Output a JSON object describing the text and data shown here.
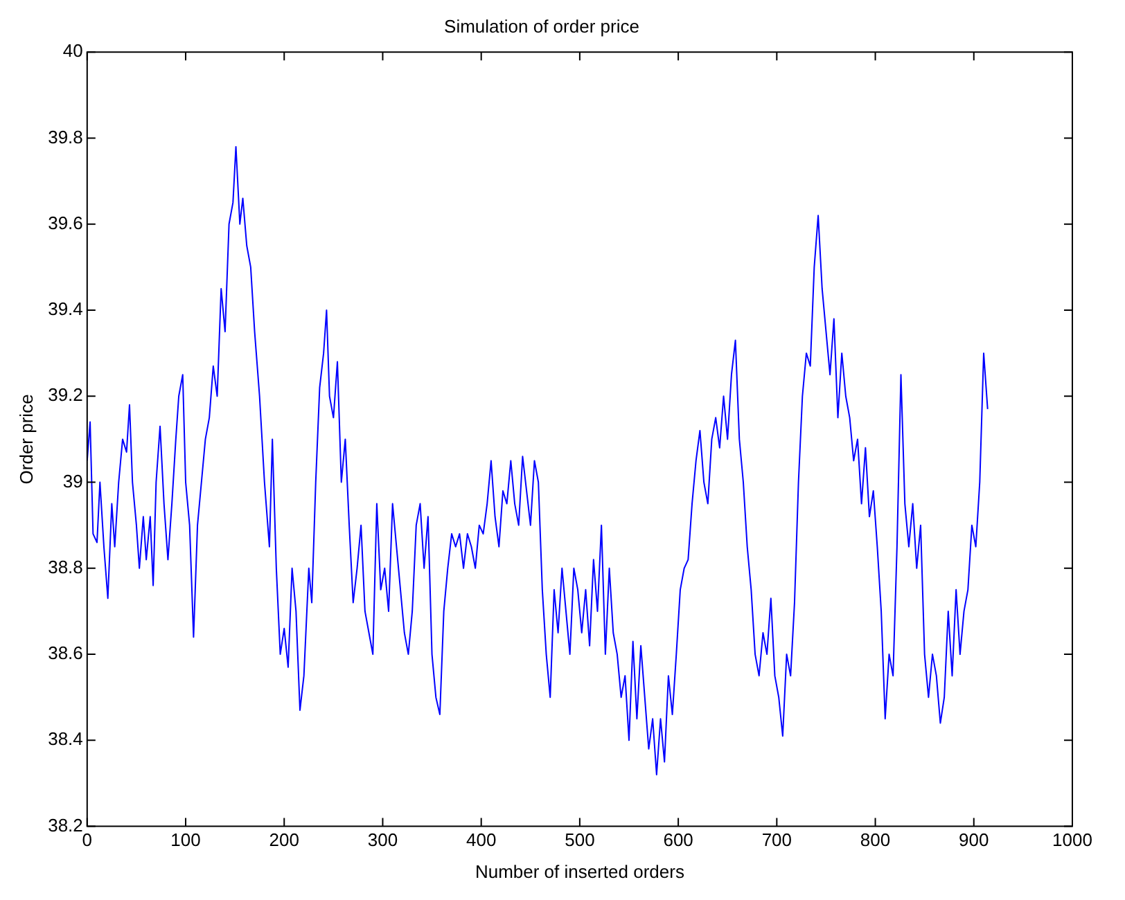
{
  "chart_data": {
    "type": "line",
    "title": "Simulation of order price",
    "xlabel": "Number of inserted orders",
    "ylabel": "Order price",
    "xlim": [
      0,
      1000
    ],
    "xticks": [
      0,
      100,
      200,
      300,
      400,
      500,
      600,
      700,
      800,
      900,
      1000
    ],
    "ylim": [
      38.2,
      40
    ],
    "yticks": [
      38.2,
      38.4,
      38.6,
      38.8,
      39,
      39.2,
      39.4,
      39.6,
      39.8,
      40
    ],
    "marker": "none",
    "line_style": "solid",
    "series": [
      {
        "color": "#0000ff",
        "x": [
          0,
          3,
          6,
          10,
          13,
          17,
          21,
          25,
          28,
          32,
          36,
          40,
          43,
          46,
          50,
          53,
          57,
          60,
          64,
          67,
          70,
          74,
          78,
          82,
          86,
          90,
          93,
          97,
          100,
          104,
          108,
          112,
          116,
          120,
          124,
          128,
          132,
          136,
          140,
          144,
          148,
          151,
          155,
          158,
          162,
          166,
          170,
          175,
          180,
          185,
          188,
          192,
          196,
          200,
          204,
          208,
          212,
          216,
          220,
          225,
          228,
          232,
          236,
          240,
          243,
          246,
          250,
          254,
          258,
          262,
          266,
          270,
          274,
          278,
          282,
          286,
          290,
          294,
          298,
          302,
          306,
          310,
          314,
          318,
          322,
          326,
          330,
          334,
          338,
          342,
          346,
          350,
          354,
          358,
          362,
          366,
          370,
          374,
          378,
          382,
          386,
          390,
          394,
          398,
          402,
          406,
          410,
          414,
          418,
          422,
          426,
          430,
          434,
          438,
          442,
          446,
          450,
          454,
          458,
          462,
          466,
          470,
          474,
          478,
          482,
          486,
          490,
          494,
          498,
          502,
          506,
          510,
          514,
          518,
          522,
          526,
          530,
          534,
          538,
          542,
          546,
          550,
          554,
          558,
          562,
          566,
          570,
          574,
          578,
          582,
          586,
          590,
          594,
          598,
          602,
          606,
          610,
          614,
          618,
          622,
          626,
          630,
          634,
          638,
          642,
          646,
          650,
          654,
          658,
          662,
          666,
          670,
          674,
          678,
          682,
          686,
          690,
          694,
          698,
          702,
          706,
          710,
          714,
          718,
          722,
          726,
          730,
          734,
          738,
          742,
          746,
          750,
          754,
          758,
          762,
          766,
          770,
          774,
          778,
          782,
          786,
          790,
          794,
          798,
          802,
          806,
          810,
          814,
          818,
          822,
          826,
          830,
          834,
          838,
          842,
          846,
          850,
          854,
          858,
          862,
          866,
          870,
          874,
          878,
          882,
          886,
          890,
          894,
          898,
          902,
          906,
          910,
          914
        ],
        "values": [
          39.05,
          39.14,
          38.88,
          38.86,
          39.0,
          38.85,
          38.73,
          38.95,
          38.85,
          39.0,
          39.1,
          39.07,
          39.18,
          39.0,
          38.9,
          38.8,
          38.92,
          38.82,
          38.92,
          38.76,
          39.0,
          39.13,
          38.95,
          38.82,
          38.95,
          39.1,
          39.2,
          39.25,
          39.0,
          38.9,
          38.64,
          38.9,
          39.0,
          39.1,
          39.15,
          39.27,
          39.2,
          39.45,
          39.35,
          39.6,
          39.65,
          39.78,
          39.6,
          39.66,
          39.55,
          39.5,
          39.35,
          39.2,
          39.0,
          38.85,
          39.1,
          38.8,
          38.6,
          38.66,
          38.57,
          38.8,
          38.7,
          38.47,
          38.55,
          38.8,
          38.72,
          39.0,
          39.22,
          39.3,
          39.4,
          39.2,
          39.15,
          39.28,
          39.0,
          39.1,
          38.9,
          38.72,
          38.8,
          38.9,
          38.7,
          38.65,
          38.6,
          38.95,
          38.75,
          38.8,
          38.7,
          38.95,
          38.85,
          38.75,
          38.65,
          38.6,
          38.7,
          38.9,
          38.95,
          38.8,
          38.92,
          38.6,
          38.5,
          38.46,
          38.7,
          38.8,
          38.88,
          38.85,
          38.88,
          38.8,
          38.88,
          38.85,
          38.8,
          38.9,
          38.88,
          38.95,
          39.05,
          38.92,
          38.85,
          38.98,
          38.95,
          39.05,
          38.95,
          38.9,
          39.06,
          38.98,
          38.9,
          39.05,
          39.0,
          38.75,
          38.6,
          38.5,
          38.75,
          38.65,
          38.8,
          38.7,
          38.6,
          38.8,
          38.75,
          38.65,
          38.75,
          38.62,
          38.82,
          38.7,
          38.9,
          38.6,
          38.8,
          38.65,
          38.6,
          38.5,
          38.55,
          38.4,
          38.63,
          38.45,
          38.62,
          38.5,
          38.38,
          38.45,
          38.32,
          38.45,
          38.35,
          38.55,
          38.46,
          38.6,
          38.75,
          38.8,
          38.82,
          38.95,
          39.05,
          39.12,
          39.0,
          38.95,
          39.1,
          39.15,
          39.08,
          39.2,
          39.1,
          39.25,
          39.33,
          39.1,
          39.0,
          38.85,
          38.75,
          38.6,
          38.55,
          38.65,
          38.6,
          38.73,
          38.55,
          38.5,
          38.41,
          38.6,
          38.55,
          38.72,
          39.0,
          39.2,
          39.3,
          39.27,
          39.5,
          39.62,
          39.45,
          39.35,
          39.25,
          39.38,
          39.15,
          39.3,
          39.2,
          39.15,
          39.05,
          39.1,
          38.95,
          39.08,
          38.92,
          38.98,
          38.85,
          38.7,
          38.45,
          38.6,
          38.55,
          38.85,
          39.25,
          38.95,
          38.85,
          38.95,
          38.8,
          38.9,
          38.6,
          38.5,
          38.6,
          38.55,
          38.44,
          38.5,
          38.7,
          38.55,
          38.75,
          38.6,
          38.7,
          38.75,
          38.9,
          38.85,
          39.0,
          39.3,
          39.17
        ]
      }
    ]
  }
}
